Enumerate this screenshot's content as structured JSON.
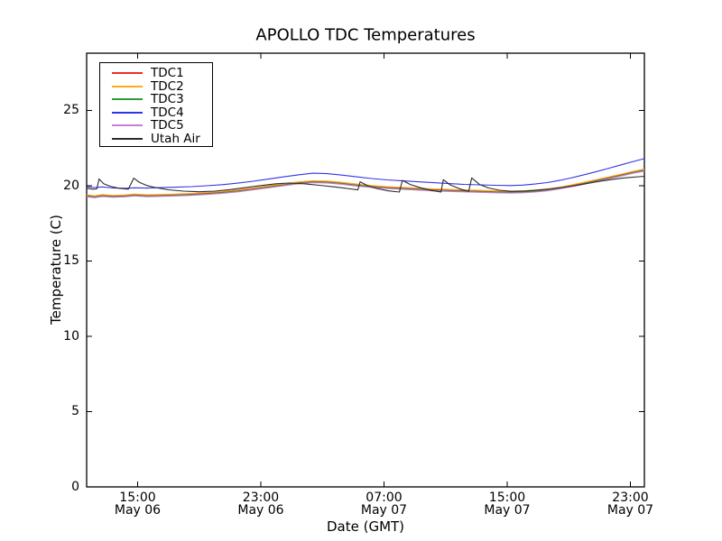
{
  "chart_data": {
    "type": "line",
    "title": "APOLLO TDC Temperatures",
    "xlabel": "Date (GMT)",
    "ylabel": "Temperature (C)",
    "x_unit": "hours since May 06 00:00 GMT",
    "xlim": [
      11.69,
      47.91
    ],
    "ylim": [
      0,
      28.8
    ],
    "grid": false,
    "legend_position": "upper-left",
    "axis_color": "#000000",
    "y_ticks": [
      {
        "value": 0,
        "label": "0"
      },
      {
        "value": 5,
        "label": "5"
      },
      {
        "value": 10,
        "label": "10"
      },
      {
        "value": 15,
        "label": "15"
      },
      {
        "value": 20,
        "label": "20"
      },
      {
        "value": 25,
        "label": "25"
      }
    ],
    "x_ticks": [
      {
        "hour": 15,
        "line1": "15:00",
        "line2": "May 06"
      },
      {
        "hour": 23,
        "line1": "23:00",
        "line2": "May 06"
      },
      {
        "hour": 31,
        "line1": "07:00",
        "line2": "May 07"
      },
      {
        "hour": 39,
        "line1": "15:00",
        "line2": "May 07"
      },
      {
        "hour": 47,
        "line1": "23:00",
        "line2": "May 07"
      }
    ],
    "series": [
      {
        "name": "TDC1",
        "color": "#ee2c2c",
        "points": [
          [
            11.69,
            19.35
          ],
          [
            12.2,
            19.28
          ],
          [
            12.7,
            19.36
          ],
          [
            13.4,
            19.31
          ],
          [
            14.2,
            19.34
          ],
          [
            14.8,
            19.4
          ],
          [
            15.6,
            19.35
          ],
          [
            16.5,
            19.37
          ],
          [
            17.5,
            19.4
          ],
          [
            18.5,
            19.44
          ],
          [
            19.5,
            19.5
          ],
          [
            20.5,
            19.57
          ],
          [
            21.5,
            19.67
          ],
          [
            22.5,
            19.8
          ],
          [
            23.5,
            19.94
          ],
          [
            24.5,
            20.08
          ],
          [
            25.5,
            20.21
          ],
          [
            26.4,
            20.28
          ],
          [
            27.3,
            20.26
          ],
          [
            28.2,
            20.18
          ],
          [
            29.2,
            20.06
          ],
          [
            30.2,
            19.96
          ],
          [
            31.2,
            19.89
          ],
          [
            32.2,
            19.84
          ],
          [
            33.2,
            19.79
          ],
          [
            34.2,
            19.74
          ],
          [
            35.2,
            19.7
          ],
          [
            36.2,
            19.67
          ],
          [
            37.2,
            19.64
          ],
          [
            38.2,
            19.61
          ],
          [
            39.2,
            19.59
          ],
          [
            40.0,
            19.61
          ],
          [
            40.8,
            19.66
          ],
          [
            41.6,
            19.74
          ],
          [
            42.4,
            19.86
          ],
          [
            43.2,
            20.01
          ],
          [
            44.0,
            20.18
          ],
          [
            44.8,
            20.36
          ],
          [
            45.6,
            20.54
          ],
          [
            46.4,
            20.72
          ],
          [
            47.2,
            20.91
          ],
          [
            47.91,
            21.05
          ]
        ]
      },
      {
        "name": "TDC2",
        "color": "#ffa91e",
        "points": [
          [
            11.69,
            19.4
          ],
          [
            12.2,
            19.33
          ],
          [
            12.7,
            19.41
          ],
          [
            13.4,
            19.36
          ],
          [
            14.2,
            19.39
          ],
          [
            14.8,
            19.45
          ],
          [
            15.6,
            19.4
          ],
          [
            16.5,
            19.42
          ],
          [
            17.5,
            19.45
          ],
          [
            18.5,
            19.49
          ],
          [
            19.5,
            19.55
          ],
          [
            20.5,
            19.62
          ],
          [
            21.5,
            19.72
          ],
          [
            22.5,
            19.85
          ],
          [
            23.5,
            19.99
          ],
          [
            24.5,
            20.13
          ],
          [
            25.5,
            20.26
          ],
          [
            26.4,
            20.33
          ],
          [
            27.3,
            20.31
          ],
          [
            28.2,
            20.23
          ],
          [
            29.2,
            20.11
          ],
          [
            30.2,
            20.01
          ],
          [
            31.2,
            19.94
          ],
          [
            32.2,
            19.89
          ],
          [
            33.2,
            19.84
          ],
          [
            34.2,
            19.79
          ],
          [
            35.2,
            19.75
          ],
          [
            36.2,
            19.72
          ],
          [
            37.2,
            19.69
          ],
          [
            38.2,
            19.66
          ],
          [
            39.2,
            19.64
          ],
          [
            40.0,
            19.66
          ],
          [
            40.8,
            19.71
          ],
          [
            41.6,
            19.79
          ],
          [
            42.4,
            19.91
          ],
          [
            43.2,
            20.06
          ],
          [
            44.0,
            20.23
          ],
          [
            44.8,
            20.41
          ],
          [
            45.6,
            20.59
          ],
          [
            46.4,
            20.77
          ],
          [
            47.2,
            20.96
          ],
          [
            47.91,
            21.1
          ]
        ]
      },
      {
        "name": "TDC3",
        "color": "#31963c",
        "points": [
          [
            11.69,
            19.31
          ],
          [
            12.2,
            19.24
          ],
          [
            12.7,
            19.32
          ],
          [
            13.4,
            19.27
          ],
          [
            14.2,
            19.3
          ],
          [
            14.8,
            19.36
          ],
          [
            15.6,
            19.31
          ],
          [
            16.5,
            19.33
          ],
          [
            17.5,
            19.36
          ],
          [
            18.5,
            19.4
          ],
          [
            19.5,
            19.46
          ],
          [
            20.5,
            19.53
          ],
          [
            21.5,
            19.63
          ],
          [
            22.5,
            19.76
          ],
          [
            23.5,
            19.9
          ],
          [
            24.5,
            20.04
          ],
          [
            25.5,
            20.17
          ],
          [
            26.4,
            20.24
          ],
          [
            27.3,
            20.22
          ],
          [
            28.2,
            20.14
          ],
          [
            29.2,
            20.02
          ],
          [
            30.2,
            19.92
          ],
          [
            31.2,
            19.85
          ],
          [
            32.2,
            19.8
          ],
          [
            33.2,
            19.75
          ],
          [
            34.2,
            19.7
          ],
          [
            35.2,
            19.66
          ],
          [
            36.2,
            19.63
          ],
          [
            37.2,
            19.6
          ],
          [
            38.2,
            19.57
          ],
          [
            39.2,
            19.55
          ],
          [
            40.0,
            19.57
          ],
          [
            40.8,
            19.62
          ],
          [
            41.6,
            19.7
          ],
          [
            42.4,
            19.82
          ],
          [
            43.2,
            19.97
          ],
          [
            44.0,
            20.14
          ],
          [
            44.8,
            20.32
          ],
          [
            45.6,
            20.5
          ],
          [
            46.4,
            20.68
          ],
          [
            47.2,
            20.87
          ],
          [
            47.91,
            21.01
          ]
        ]
      },
      {
        "name": "TDC4",
        "color": "#3333e6",
        "points": [
          [
            11.69,
            19.94
          ],
          [
            12.2,
            19.88
          ],
          [
            12.7,
            19.92
          ],
          [
            13.4,
            19.85
          ],
          [
            14.2,
            19.83
          ],
          [
            14.8,
            19.86
          ],
          [
            15.6,
            19.84
          ],
          [
            16.5,
            19.87
          ],
          [
            17.5,
            19.9
          ],
          [
            18.5,
            19.94
          ],
          [
            19.5,
            20.0
          ],
          [
            20.5,
            20.07
          ],
          [
            21.5,
            20.17
          ],
          [
            22.5,
            20.3
          ],
          [
            23.5,
            20.44
          ],
          [
            24.5,
            20.59
          ],
          [
            25.5,
            20.73
          ],
          [
            26.4,
            20.83
          ],
          [
            27.3,
            20.8
          ],
          [
            28.2,
            20.71
          ],
          [
            29.2,
            20.59
          ],
          [
            30.2,
            20.48
          ],
          [
            31.2,
            20.39
          ],
          [
            32.2,
            20.32
          ],
          [
            33.2,
            20.26
          ],
          [
            34.2,
            20.2
          ],
          [
            35.2,
            20.14
          ],
          [
            36.2,
            20.09
          ],
          [
            37.2,
            20.06
          ],
          [
            38.2,
            20.03
          ],
          [
            39.2,
            20.01
          ],
          [
            40.0,
            20.04
          ],
          [
            40.8,
            20.11
          ],
          [
            41.6,
            20.21
          ],
          [
            42.4,
            20.35
          ],
          [
            43.2,
            20.53
          ],
          [
            44.0,
            20.73
          ],
          [
            44.8,
            20.94
          ],
          [
            45.6,
            21.16
          ],
          [
            46.4,
            21.39
          ],
          [
            47.2,
            21.61
          ],
          [
            47.91,
            21.8
          ]
        ]
      },
      {
        "name": "TDC5",
        "color": "#c67fd2",
        "points": [
          [
            11.69,
            19.27
          ],
          [
            12.2,
            19.2
          ],
          [
            12.7,
            19.28
          ],
          [
            13.4,
            19.23
          ],
          [
            14.2,
            19.26
          ],
          [
            14.8,
            19.32
          ],
          [
            15.6,
            19.27
          ],
          [
            16.5,
            19.29
          ],
          [
            17.5,
            19.32
          ],
          [
            18.5,
            19.36
          ],
          [
            19.5,
            19.42
          ],
          [
            20.5,
            19.49
          ],
          [
            21.5,
            19.59
          ],
          [
            22.5,
            19.72
          ],
          [
            23.5,
            19.86
          ],
          [
            24.5,
            20.0
          ],
          [
            25.5,
            20.13
          ],
          [
            26.4,
            20.2
          ],
          [
            27.3,
            20.18
          ],
          [
            28.2,
            20.1
          ],
          [
            29.2,
            19.98
          ],
          [
            30.2,
            19.88
          ],
          [
            31.2,
            19.81
          ],
          [
            32.2,
            19.76
          ],
          [
            33.2,
            19.71
          ],
          [
            34.2,
            19.66
          ],
          [
            35.2,
            19.62
          ],
          [
            36.2,
            19.59
          ],
          [
            37.2,
            19.56
          ],
          [
            38.2,
            19.53
          ],
          [
            39.2,
            19.51
          ],
          [
            40.0,
            19.53
          ],
          [
            40.8,
            19.58
          ],
          [
            41.6,
            19.66
          ],
          [
            42.4,
            19.78
          ],
          [
            43.2,
            19.93
          ],
          [
            44.0,
            20.1
          ],
          [
            44.8,
            20.28
          ],
          [
            45.6,
            20.46
          ],
          [
            46.4,
            20.64
          ],
          [
            47.2,
            20.83
          ],
          [
            47.91,
            20.97
          ]
        ]
      },
      {
        "name": "Utah Air",
        "color": "#2b2b2b",
        "points": [
          [
            11.69,
            19.83
          ],
          [
            12.1,
            19.77
          ],
          [
            12.35,
            19.79
          ],
          [
            12.5,
            20.45
          ],
          [
            12.8,
            20.13
          ],
          [
            13.2,
            19.97
          ],
          [
            13.8,
            19.83
          ],
          [
            14.4,
            19.77
          ],
          [
            14.75,
            20.5
          ],
          [
            15.1,
            20.23
          ],
          [
            15.6,
            20.01
          ],
          [
            16.2,
            19.87
          ],
          [
            17.0,
            19.73
          ],
          [
            18.0,
            19.64
          ],
          [
            19.0,
            19.6
          ],
          [
            20.0,
            19.64
          ],
          [
            21.0,
            19.74
          ],
          [
            22.0,
            19.87
          ],
          [
            23.0,
            20.01
          ],
          [
            24.0,
            20.13
          ],
          [
            24.8,
            20.18
          ],
          [
            25.8,
            20.13
          ],
          [
            26.8,
            20.03
          ],
          [
            27.8,
            19.92
          ],
          [
            28.6,
            19.82
          ],
          [
            29.3,
            19.72
          ],
          [
            29.45,
            20.26
          ],
          [
            29.9,
            20.02
          ],
          [
            30.5,
            19.82
          ],
          [
            31.3,
            19.66
          ],
          [
            32.0,
            19.58
          ],
          [
            32.2,
            20.36
          ],
          [
            32.7,
            20.08
          ],
          [
            33.4,
            19.86
          ],
          [
            34.1,
            19.68
          ],
          [
            34.7,
            19.58
          ],
          [
            34.85,
            20.4
          ],
          [
            35.3,
            20.06
          ],
          [
            35.9,
            19.8
          ],
          [
            36.5,
            19.62
          ],
          [
            36.7,
            20.52
          ],
          [
            37.2,
            20.08
          ],
          [
            37.8,
            19.85
          ],
          [
            38.5,
            19.7
          ],
          [
            39.3,
            19.63
          ],
          [
            40.2,
            19.65
          ],
          [
            41.0,
            19.71
          ],
          [
            41.8,
            19.79
          ],
          [
            42.6,
            19.89
          ],
          [
            43.4,
            20.01
          ],
          [
            44.2,
            20.15
          ],
          [
            45.0,
            20.29
          ],
          [
            45.8,
            20.41
          ],
          [
            46.6,
            20.52
          ],
          [
            47.91,
            20.63
          ]
        ]
      }
    ]
  }
}
